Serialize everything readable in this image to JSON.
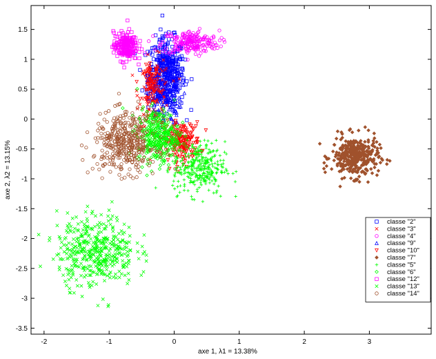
{
  "chart_data": {
    "type": "scatter",
    "title": "",
    "xlabel": "axe 1,  λ1 = 13.38%",
    "ylabel": "axe 2,  λ2 = 13.15%",
    "xlim": [
      -2.2,
      3.95
    ],
    "ylim": [
      -3.6,
      1.9
    ],
    "xticks": [
      -2,
      -1,
      0,
      1,
      2,
      3
    ],
    "yticks": [
      -3.5,
      -3,
      -2.5,
      -2,
      -1.5,
      -1,
      -0.5,
      0,
      0.5,
      1,
      1.5
    ],
    "grid": false,
    "legend_position": "bottom-right",
    "series": [
      {
        "name": "classe \"2\"",
        "marker": "square",
        "color": "#0000ff",
        "approx_points": 420,
        "clusters": [
          {
            "cx": -0.12,
            "cy": 0.75,
            "sx": 0.14,
            "sy": 0.3,
            "n": 420
          }
        ]
      },
      {
        "name": "classe \"3\"",
        "marker": "x",
        "color": "#ff0000",
        "approx_points": 120,
        "clusters": [
          {
            "cx": -0.3,
            "cy": 0.45,
            "sx": 0.12,
            "sy": 0.28,
            "n": 120
          }
        ]
      },
      {
        "name": "classe \"4\"",
        "marker": "circle",
        "color": "#ff00ff",
        "approx_points": 220,
        "clusters": [
          {
            "cx": 0.25,
            "cy": 1.28,
            "sx": 0.22,
            "sy": 0.1,
            "n": 220
          }
        ]
      },
      {
        "name": "classe \"9\"",
        "marker": "triangle-up",
        "color": "#0000ff",
        "approx_points": 100,
        "clusters": [
          {
            "cx": -0.15,
            "cy": 0.35,
            "sx": 0.13,
            "sy": 0.22,
            "n": 100
          }
        ]
      },
      {
        "name": "classe \"10\"",
        "marker": "triangle-down",
        "color": "#ff0000",
        "approx_points": 260,
        "clusters": [
          {
            "cx": 0.12,
            "cy": -0.38,
            "sx": 0.14,
            "sy": 0.16,
            "n": 200
          },
          {
            "cx": -0.35,
            "cy": 0.6,
            "sx": 0.06,
            "sy": 0.15,
            "n": 60
          }
        ]
      },
      {
        "name": "classe \"7\"",
        "marker": "diamond",
        "color": "#a0522d",
        "approx_points": 360,
        "clusters": [
          {
            "cx": 2.78,
            "cy": -0.63,
            "sx": 0.18,
            "sy": 0.17,
            "n": 360
          }
        ]
      },
      {
        "name": "classe \"5\"",
        "marker": "plus",
        "color": "#00ff00",
        "approx_points": 320,
        "clusters": [
          {
            "cx": 0.38,
            "cy": -0.82,
            "sx": 0.2,
            "sy": 0.22,
            "n": 320
          }
        ]
      },
      {
        "name": "classe \"6\"",
        "marker": "diamond-open",
        "color": "#00ff00",
        "approx_points": 340,
        "clusters": [
          {
            "cx": -0.25,
            "cy": -0.28,
            "sx": 0.16,
            "sy": 0.22,
            "n": 340
          }
        ]
      },
      {
        "name": "classe \"12\"",
        "marker": "square",
        "color": "#ff00ff",
        "approx_points": 220,
        "clusters": [
          {
            "cx": -0.75,
            "cy": 1.22,
            "sx": 0.09,
            "sy": 0.12,
            "n": 220
          }
        ]
      },
      {
        "name": "classe \"13\"",
        "marker": "x",
        "color": "#00ff00",
        "approx_points": 440,
        "clusters": [
          {
            "cx": -1.2,
            "cy": -2.2,
            "sx": 0.3,
            "sy": 0.3,
            "n": 440
          }
        ]
      },
      {
        "name": "classe \"14\"",
        "marker": "circle",
        "color": "#a0522d",
        "approx_points": 400,
        "clusters": [
          {
            "cx": -0.75,
            "cy": -0.4,
            "sx": 0.24,
            "sy": 0.25,
            "n": 400
          }
        ]
      }
    ]
  }
}
